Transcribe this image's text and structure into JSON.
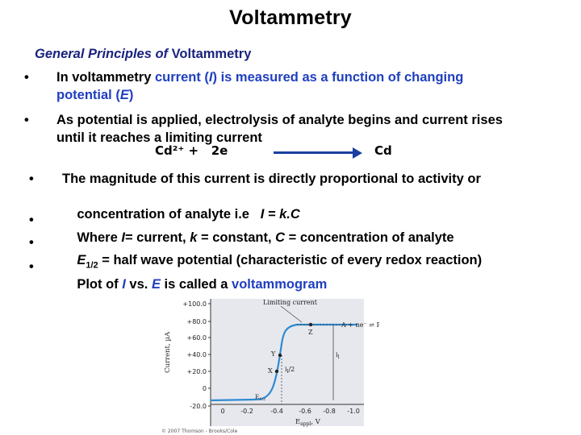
{
  "title": "Voltammetry",
  "subtitle": {
    "italic_part": "General Principles of",
    "plain_part": " Voltammetry"
  },
  "bullets": [
    {
      "parts": [
        "In voltammetry ",
        "current (",
        "I",
        ") is measured as a function of changing"
      ],
      "line2": [
        "potential (",
        "E",
        ")"
      ]
    },
    {
      "line1": "As potential is applied, electrolysis of analyte begins and current rises",
      "line2": "until it reaches a limiting current"
    },
    {
      "line1": "The magnitude of this current is directly proportional to activity or",
      "line2_a": "concentration of analyte i.e   ",
      "line2_b": "I = k.C"
    },
    {
      "a": "Where ",
      "b": "I",
      "c": "= current, ",
      "d": "k",
      "e": " = constant, ",
      "f": "C",
      "g": " = concentration of analyte"
    },
    {
      "a": "E",
      "sub": "1/2",
      "b": " = half wave potential (characteristic of every redox reaction)"
    },
    {
      "a": "Plot of ",
      "b": "I",
      "c": " vs. ",
      "d": "E",
      "e": " is called a ",
      "f": "voltammogram"
    }
  ],
  "equation": {
    "left": "Cd²⁺ +   2e",
    "right": "Cd"
  },
  "graph": {
    "y_ticks": [
      "+100.0",
      "+80.0",
      "+60.0",
      "+40.0",
      "+20.0",
      "0",
      "-20.0"
    ],
    "x_ticks": [
      "0",
      "-0.2",
      "-0.4",
      "-0.6",
      "-0.8",
      "-1.0"
    ],
    "ylabel": "Current, µA",
    "xlabel": "E",
    "xlabel_sub": "appl",
    "xlabel_unit": ", V",
    "limiting_label": "Limiting current",
    "reaction_label": "A + ne⁻ ⇌ P",
    "point_z": "Z",
    "point_y": "Y",
    "point_x": "X",
    "il_label": "i",
    "il_sub": "l",
    "half_label": "i",
    "half_sub": "l",
    "half_tail": "/2",
    "e_half_label": "E",
    "e_half_sub": "1/2",
    "copyright": "© 2007 Thomson - Brooks/Cole"
  },
  "colors": {
    "heading_blue": "#1a237e",
    "term_blue": "#1f3fbf",
    "curve_blue": "#2e8bd1",
    "axis_panel": "#e6e8ee"
  }
}
